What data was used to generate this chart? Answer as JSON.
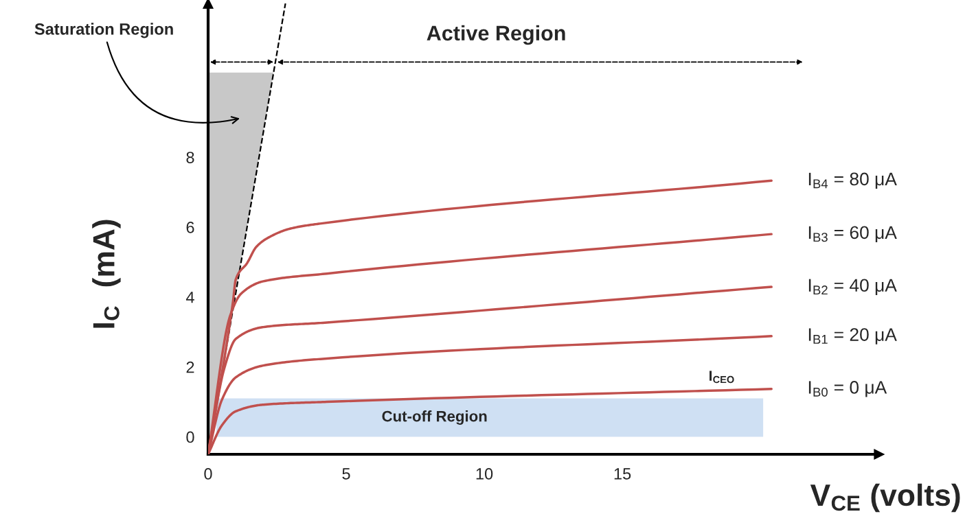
{
  "chart_data": {
    "type": "line",
    "xlabel": "V$_{CE}$ (volts)",
    "ylabel": "I$_{C}$  (mA)",
    "xlim": [
      0,
      24.3
    ],
    "xticks": [
      0,
      5,
      10,
      15
    ],
    "ylim": [
      -0.5,
      12.4
    ],
    "yticks": [
      0,
      2,
      4,
      6,
      8
    ],
    "series": [
      {
        "color": "#000000",
        "line_style": "dashed",
        "x": [
          0,
          2.8
        ],
        "values": [
          -0.5,
          12.4
        ]
      },
      {
        "name": "I$_{B4}$ = 80 μA",
        "color": "#c0504d",
        "x": [
          0,
          0.9,
          1.0,
          1.42,
          1.74,
          2.16,
          2.99,
          4.05,
          20.4
        ],
        "values": [
          -0.5,
          3.86,
          4.5,
          4.98,
          5.43,
          5.69,
          5.96,
          6.1,
          7.33
        ]
      },
      {
        "name": "I$_{B3}$ = 60 μA",
        "color": "#c0504d",
        "x": [
          0,
          0.8,
          1.2,
          2,
          4.3,
          20.4
        ],
        "values": [
          -0.5,
          3.47,
          4.1,
          4.45,
          4.67,
          5.8
        ]
      },
      {
        "name": "I$_{B2}$ = 40 μA",
        "color": "#c0504d",
        "x": [
          0,
          0.6,
          1,
          2,
          4.3,
          20.4
        ],
        "values": [
          -0.5,
          2.0,
          2.8,
          3.14,
          3.27,
          4.29
        ]
      },
      {
        "name": "I$_{B1}$ = 20 μA",
        "color": "#c0504d",
        "x": [
          0,
          0.5,
          1,
          2,
          4.3,
          20.4
        ],
        "values": [
          -0.5,
          1.06,
          1.7,
          2.04,
          2.24,
          2.88
        ]
      },
      {
        "name": "I$_{B0}$ = 0 μA",
        "color": "#c0504d",
        "x": [
          0,
          0.5,
          1,
          2,
          4.3,
          20.4
        ],
        "values": [
          -0.5,
          0.33,
          0.73,
          0.92,
          1.0,
          1.37
        ]
      }
    ],
    "bands": [
      {
        "axis": "y",
        "from": 0,
        "to": 1.1,
        "label": "Cut-off Region",
        "color": "#cfe0f3"
      }
    ],
    "annotations": [
      "Saturation Region",
      "Active Region",
      {
        "text": "I$_{CEO}$",
        "x": 18.6,
        "y": 1.37
      }
    ]
  }
}
